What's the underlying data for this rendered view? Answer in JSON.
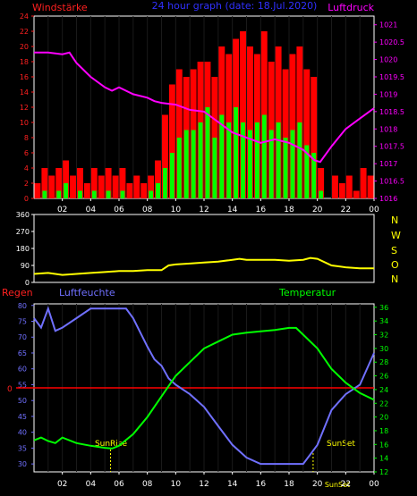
{
  "colors": {
    "background": "#000000",
    "wind_avg": "#00ff00",
    "wind_gust": "#ff0000",
    "pressure": "#ff00ff",
    "direction": "#ffff00",
    "humidity": "#7070ff",
    "temperature": "#00ff00",
    "rain": "#ff0000",
    "sun": "#ffff00",
    "axis_left_top": "#ff2020",
    "axis_right_top": "#ff00ff",
    "axis_left_bottom": "#7070ff",
    "axis_right_bottom": "#00ff00"
  },
  "header": {
    "title_left": "Windstärke",
    "title_center": "24 hour graph (date: 18.Jul.2020)",
    "title_right": "Luftdruck"
  },
  "direction_labels": [
    "N",
    "W",
    "S",
    "O",
    "N"
  ],
  "bottom_header": {
    "rain_label": "Regen",
    "humidity_label": "Luftfeuchte",
    "temperature_label": "Temperatur"
  },
  "annotations": {
    "sunrise": "SunRise",
    "sunset": "SunSet",
    "sunset_bottom": "SunSet"
  },
  "chart_data": [
    {
      "type": "bar",
      "title": "24 hour graph (date: 18.Jul.2020)",
      "ylabel": "Windstärke",
      "y2label": "Luftdruck",
      "ylim": [
        0,
        24
      ],
      "y_ticks": [
        "0",
        "2",
        "4",
        "6",
        "8",
        "10",
        "12",
        "14",
        "16",
        "18",
        "20",
        "22",
        "24"
      ],
      "y2lim": [
        1016,
        1021.25
      ],
      "y2_ticks": [
        "1016",
        "1016.5",
        "1017",
        "1017.5",
        "1018",
        "1018.5",
        "1019",
        "1019.5",
        "1020",
        "1020.5",
        "1021"
      ],
      "x_ticks": [
        "02",
        "04",
        "06",
        "08",
        "10",
        "12",
        "14",
        "16",
        "18",
        "20",
        "22",
        "00"
      ],
      "x_hours": [
        0,
        24
      ],
      "series": [
        {
          "role": "gust",
          "x": [
            0,
            0.5,
            1,
            1.5,
            2,
            2.5,
            3,
            3.5,
            4,
            4.5,
            5,
            5.5,
            6,
            6.5,
            7,
            7.5,
            8,
            8.5,
            9,
            9.5,
            10,
            10.5,
            11,
            11.5,
            12,
            12.5,
            13,
            13.5,
            14,
            14.5,
            15,
            15.5,
            16,
            16.5,
            17,
            17.5,
            18,
            18.5,
            19,
            19.5,
            20,
            20.5,
            21,
            21.5,
            22,
            22.5,
            23,
            23.5
          ],
          "values": [
            2,
            4,
            3,
            4,
            5,
            3,
            4,
            2,
            4,
            3,
            4,
            3,
            4,
            2,
            3,
            2,
            3,
            5,
            11,
            15,
            17,
            16,
            17,
            18,
            18,
            16,
            20,
            19,
            21,
            22,
            20,
            19,
            22,
            18,
            20,
            17,
            19,
            20,
            17,
            16,
            4,
            0,
            3,
            2,
            3,
            1,
            4,
            3
          ]
        },
        {
          "role": "average",
          "x": [
            0,
            0.5,
            1,
            1.5,
            2,
            2.5,
            3,
            3.5,
            4,
            4.5,
            5,
            5.5,
            6,
            6.5,
            7,
            7.5,
            8,
            8.5,
            9,
            9.5,
            10,
            10.5,
            11,
            11.5,
            12,
            12.5,
            13,
            13.5,
            14,
            14.5,
            15,
            15.5,
            16,
            16.5,
            17,
            17.5,
            18,
            18.5,
            19,
            19.5,
            20,
            20.5,
            21,
            21.5,
            22,
            22.5,
            23,
            23.5
          ],
          "values": [
            0,
            1,
            0,
            1,
            2,
            0,
            1,
            0,
            1,
            0,
            1,
            0,
            1,
            0,
            0,
            0,
            1,
            2,
            4,
            6,
            8,
            9,
            9,
            10,
            12,
            8,
            11,
            10,
            12,
            10,
            9,
            10,
            11,
            9,
            10,
            8,
            9,
            10,
            7,
            6,
            1,
            0,
            0,
            0,
            0,
            0,
            0,
            0
          ]
        },
        {
          "role": "pressure",
          "x": [
            0,
            1,
            2,
            2.5,
            3,
            4,
            5,
            5.5,
            6,
            7,
            8,
            8.5,
            9,
            10,
            11,
            12,
            13,
            14,
            15,
            16,
            17,
            18,
            19,
            19.8,
            20.2,
            21,
            22,
            23,
            24
          ],
          "values": [
            1020.2,
            1020.2,
            1020.15,
            1020.2,
            1019.9,
            1019.5,
            1019.2,
            1019.1,
            1019.2,
            1019.0,
            1018.9,
            1018.8,
            1018.75,
            1018.7,
            1018.55,
            1018.5,
            1018.2,
            1017.9,
            1017.75,
            1017.6,
            1017.7,
            1017.6,
            1017.4,
            1017.1,
            1017.05,
            1017.5,
            1018.0,
            1018.3,
            1018.6
          ]
        }
      ]
    },
    {
      "type": "line",
      "title": "",
      "ylim": [
        0,
        360
      ],
      "y_ticks": [
        "0",
        "90",
        "180",
        "270",
        "360"
      ],
      "series": [
        {
          "role": "direction",
          "x": [
            0,
            1,
            2,
            3,
            4,
            5,
            6,
            7,
            8,
            9,
            9.5,
            10,
            11,
            12,
            13,
            14,
            14.5,
            15,
            16,
            17,
            18,
            19,
            19.5,
            20,
            21,
            22,
            23,
            24
          ],
          "values": [
            45,
            50,
            40,
            45,
            50,
            55,
            60,
            60,
            65,
            65,
            90,
            95,
            100,
            105,
            110,
            120,
            125,
            120,
            120,
            120,
            115,
            120,
            130,
            125,
            90,
            80,
            75,
            75
          ]
        }
      ]
    },
    {
      "type": "line",
      "title": "",
      "ylabel": "Luftfeuchte",
      "y2label": "Temperatur",
      "ylim": [
        27.5,
        80.5
      ],
      "y_ticks": [
        "30",
        "35",
        "40",
        "45",
        "50",
        "55",
        "60",
        "65",
        "70",
        "75",
        "80"
      ],
      "y2lim": [
        12,
        36.5
      ],
      "y2_ticks": [
        "12",
        "14",
        "16",
        "18",
        "20",
        "22",
        "24",
        "26",
        "28",
        "30",
        "32",
        "34",
        "36"
      ],
      "rain_zero_label": "0",
      "x_ticks": [
        "02",
        "04",
        "06",
        "08",
        "10",
        "12",
        "14",
        "16",
        "18",
        "20",
        "22",
        "00"
      ],
      "series": [
        {
          "role": "humidity",
          "x": [
            0,
            0.5,
            1,
            1.5,
            2,
            3,
            4,
            5,
            6,
            6.5,
            7,
            8,
            8.5,
            9,
            9.5,
            10,
            11,
            12,
            13,
            14,
            15,
            16,
            17,
            18,
            19,
            19.5,
            20,
            21,
            22,
            23,
            24
          ],
          "values": [
            76,
            73,
            79,
            72,
            73,
            76,
            79,
            79,
            79,
            79,
            76,
            67,
            63,
            61,
            57,
            55,
            52,
            48,
            42,
            36,
            32,
            30,
            30,
            30,
            30,
            33,
            36,
            47,
            52,
            55,
            65
          ]
        },
        {
          "role": "temperature",
          "x": [
            0,
            0.5,
            1,
            1.5,
            2,
            3,
            4,
            5,
            5.5,
            6,
            7,
            8,
            9,
            10,
            11,
            12,
            13,
            14,
            15,
            16,
            17,
            18,
            18.5,
            19,
            20,
            21,
            22,
            23,
            24
          ],
          "values": [
            16.6,
            17.0,
            16.5,
            16.2,
            17.0,
            16.2,
            15.8,
            15.5,
            15.4,
            15.8,
            17.5,
            20,
            23,
            26,
            28,
            30,
            31,
            32,
            32.3,
            32.5,
            32.7,
            33,
            33,
            32,
            30,
            27,
            25,
            23.5,
            22.5
          ]
        }
      ]
    }
  ]
}
